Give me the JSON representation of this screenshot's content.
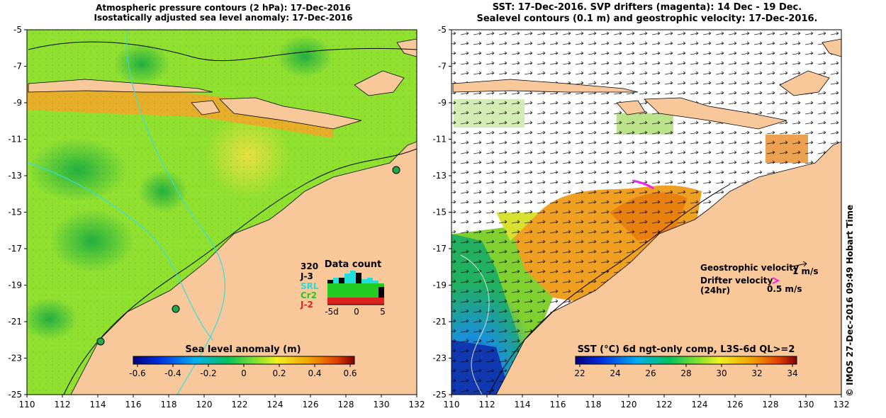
{
  "left_panel": {
    "title_line1": "Atmospheric pressure contours (2 hPa): 17-Dec-2016",
    "title_line2": "Isostatically adjusted sea level anomaly: 17-Dec-2016",
    "colorbar": {
      "label": "Sea level anomaly (m)",
      "ticks": [
        "-0.6",
        "-0.4",
        "-0.2",
        "0",
        "0.2",
        "0.4",
        "0.6"
      ],
      "range": [
        -0.6,
        0.6
      ]
    },
    "data_count": {
      "title": "Data count",
      "max_label": "320",
      "missions": [
        {
          "name": "J-3",
          "color": "#000000"
        },
        {
          "name": "SRL",
          "color": "#22dddd"
        },
        {
          "name": "Cr2",
          "color": "#22cc22"
        },
        {
          "name": "J-2",
          "color": "#dd2222"
        }
      ],
      "xticks": [
        "-5d",
        "0",
        "5"
      ]
    }
  },
  "right_panel": {
    "title_line1": "SST: 17-Dec-2016. SVP drifters (magenta): 14 Dec - 19 Dec.",
    "title_line2": "Sealevel contours (0.1 m) and geostrophic velocity: 17-Dec-2016.",
    "legend": {
      "geostrophic": "Geostrophic velocity",
      "geostrophic_scale": "1 m/s",
      "drifter_line1": "Drifter velocity",
      "drifter_line2": "(24hr)",
      "drifter_scale": "0.5 m/s"
    },
    "colorbar": {
      "label": "SST (°C) 6d ngt-only comp, L3S-6d QL>=2",
      "ticks": [
        "22",
        "24",
        "26",
        "28",
        "30",
        "32",
        "34"
      ],
      "range": [
        22,
        34
      ]
    }
  },
  "axes": {
    "lon_ticks": [
      "110",
      "112",
      "114",
      "116",
      "118",
      "120",
      "122",
      "124",
      "126",
      "128",
      "130",
      "132"
    ],
    "lat_ticks": [
      "-5",
      "-7",
      "-9",
      "-11",
      "-13",
      "-15",
      "-17",
      "-19",
      "-21",
      "-23",
      "-25"
    ]
  },
  "credit": "© IMOS 27-Dec-2016 09:49 Hobart Time",
  "colors": {
    "land": "#f8c89a",
    "sla_green": "#88e030",
    "sst_orange": "#f0a020",
    "contour": "#000000",
    "coast_cyan": "#33dddd"
  }
}
